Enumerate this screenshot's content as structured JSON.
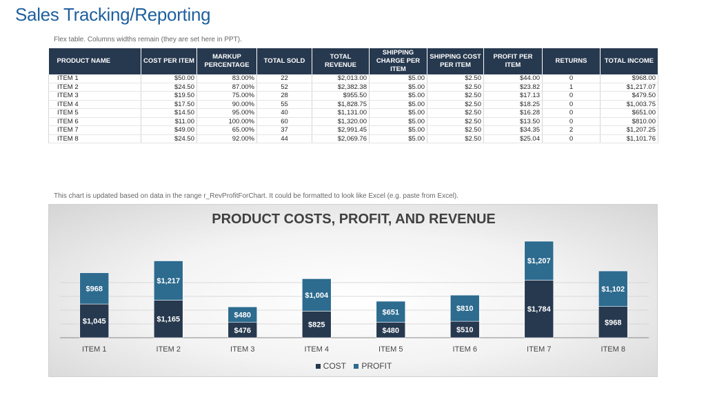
{
  "page": {
    "title": "Sales Tracking/Reporting",
    "table_note": "Flex table. Columns widths remain (they are set here in PPT).",
    "chart_note": "This chart is updated based on data in the range r_RevProfitForChart. It could be formatted to look like Excel (e.g. paste from Excel)."
  },
  "table": {
    "headers": [
      "PRODUCT NAME",
      "COST PER ITEM",
      "MARKUP PERCENTAGE",
      "TOTAL SOLD",
      "TOTAL REVENUE",
      "SHIPPING CHARGE PER ITEM",
      "SHIPPING COST PER ITEM",
      "PROFIT PER ITEM",
      "RETURNS",
      "TOTAL INCOME"
    ],
    "rows": [
      [
        "ITEM 1",
        "$50.00",
        "83.00%",
        "22",
        "$2,013.00",
        "$5.00",
        "$2.50",
        "$44.00",
        "0",
        "$968.00"
      ],
      [
        "ITEM 2",
        "$24.50",
        "87.00%",
        "52",
        "$2,382.38",
        "$5.00",
        "$2.50",
        "$23.82",
        "1",
        "$1,217.07"
      ],
      [
        "ITEM 3",
        "$19.50",
        "75.00%",
        "28",
        "$955.50",
        "$5.00",
        "$2.50",
        "$17.13",
        "0",
        "$479.50"
      ],
      [
        "ITEM 4",
        "$17.50",
        "90.00%",
        "55",
        "$1,828.75",
        "$5.00",
        "$2.50",
        "$18.25",
        "0",
        "$1,003.75"
      ],
      [
        "ITEM 5",
        "$14.50",
        "95.00%",
        "40",
        "$1,131.00",
        "$5.00",
        "$2.50",
        "$16.28",
        "0",
        "$651.00"
      ],
      [
        "ITEM 6",
        "$11.00",
        "100.00%",
        "60",
        "$1,320.00",
        "$5.00",
        "$2.50",
        "$13.50",
        "0",
        "$810.00"
      ],
      [
        "ITEM 7",
        "$49.00",
        "65.00%",
        "37",
        "$2,991.45",
        "$5.00",
        "$2.50",
        "$34.35",
        "2",
        "$1,207.25"
      ],
      [
        "ITEM 8",
        "$24.50",
        "92.00%",
        "44",
        "$2,069.76",
        "$5.00",
        "$2.50",
        "$25.04",
        "0",
        "$1,101.76"
      ]
    ]
  },
  "chart_data": {
    "type": "bar",
    "stacked": true,
    "title": "PRODUCT COSTS, PROFIT, AND REVENUE",
    "categories": [
      "ITEM 1",
      "ITEM 2",
      "ITEM 3",
      "ITEM 4",
      "ITEM 5",
      "ITEM 6",
      "ITEM 7",
      "ITEM 8"
    ],
    "series": [
      {
        "name": "COST",
        "color": "#27394f",
        "values": [
          1045,
          1165,
          476,
          825,
          480,
          510,
          1784,
          968
        ],
        "labels": [
          "$1,045",
          "$1,165",
          "$476",
          "$825",
          "$480",
          "$510",
          "$1,784",
          "$968"
        ]
      },
      {
        "name": "PROFIT",
        "color": "#2d6b8f",
        "values": [
          968,
          1217,
          480,
          1004,
          651,
          810,
          1207,
          1102
        ],
        "labels": [
          "$968",
          "$1,217",
          "$480",
          "$1,004",
          "$651",
          "$810",
          "$1,207",
          "$1,102"
        ]
      }
    ],
    "grid": true,
    "legend": "bottom"
  }
}
